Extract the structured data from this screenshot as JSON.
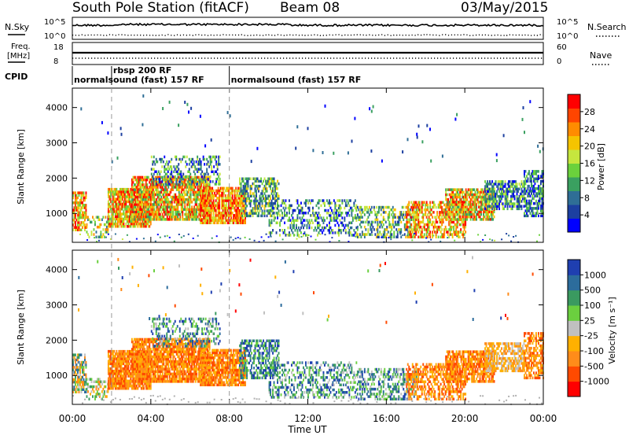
{
  "header": {
    "station": "South Pole Station (fitACF)",
    "beam": "Beam 08",
    "date": "03/May/2015"
  },
  "top_panels": {
    "nsky_label": "N.Sky",
    "nsearch_label": "N.Search",
    "freq_label_line1": "Freq.",
    "freq_label_line2": "[MHz]",
    "nave_label": "Nave",
    "cpid_label": "CPID",
    "nsky_ticks": [
      "10^5",
      "10^0"
    ],
    "nsearch_ticks": [
      "10^5",
      "10^0"
    ],
    "freq_ticks": [
      "18",
      "8"
    ],
    "nave_ticks": [
      "60",
      "0"
    ]
  },
  "cpid": {
    "segments": [
      {
        "label": "normalsound (fast) 157 RF",
        "start_hour": 0.0
      },
      {
        "label": "rbsp 200 RF",
        "start_hour": 2.0
      },
      {
        "label": "normalsound (fast) 157 RF",
        "start_hour": 8.0
      }
    ]
  },
  "chart_data": [
    {
      "type": "heatmap",
      "panel": "power",
      "ylabel": "Slant Range [km]",
      "xlabel": "",
      "x_range_hours": [
        0,
        24
      ],
      "ylim": [
        180,
        4550
      ],
      "yticks": [
        1000,
        2000,
        3000,
        4000
      ],
      "colorbar_label": "Power [dB]",
      "colorbar_ticks": [
        "28",
        "24",
        "20",
        "16",
        "12",
        "8",
        "4"
      ],
      "colorscale": [
        "#0000ff",
        "#1c3fa0",
        "#2f6e96",
        "#3aa060",
        "#6bd13c",
        "#c6e63e",
        "#f5c400",
        "#ff8c00",
        "#ff4500",
        "#ff0000"
      ],
      "grid": false
    },
    {
      "type": "heatmap",
      "panel": "velocity",
      "ylabel": "Slant Range [km]",
      "xlabel": "Time UT",
      "x_range_hours": [
        0,
        24
      ],
      "xticks": [
        "00:00",
        "04:00",
        "08:00",
        "12:00",
        "16:00",
        "20:00",
        "00:00"
      ],
      "ylim": [
        180,
        4550
      ],
      "yticks": [
        1000,
        2000,
        3000,
        4000
      ],
      "colorbar_label": "Velocity [m s⁻¹]",
      "colorbar_ticks": [
        "1000",
        "500",
        "100",
        "25",
        "-25",
        "-100",
        "-500",
        "-1000"
      ],
      "colorscale": [
        "#ff0000",
        "#ff4a00",
        "#ff8c1a",
        "#ffb000",
        "#c0c0c0",
        "#6bcf3f",
        "#3a9a60",
        "#2c6c9c",
        "#1f3fb0"
      ],
      "grid": false
    }
  ]
}
